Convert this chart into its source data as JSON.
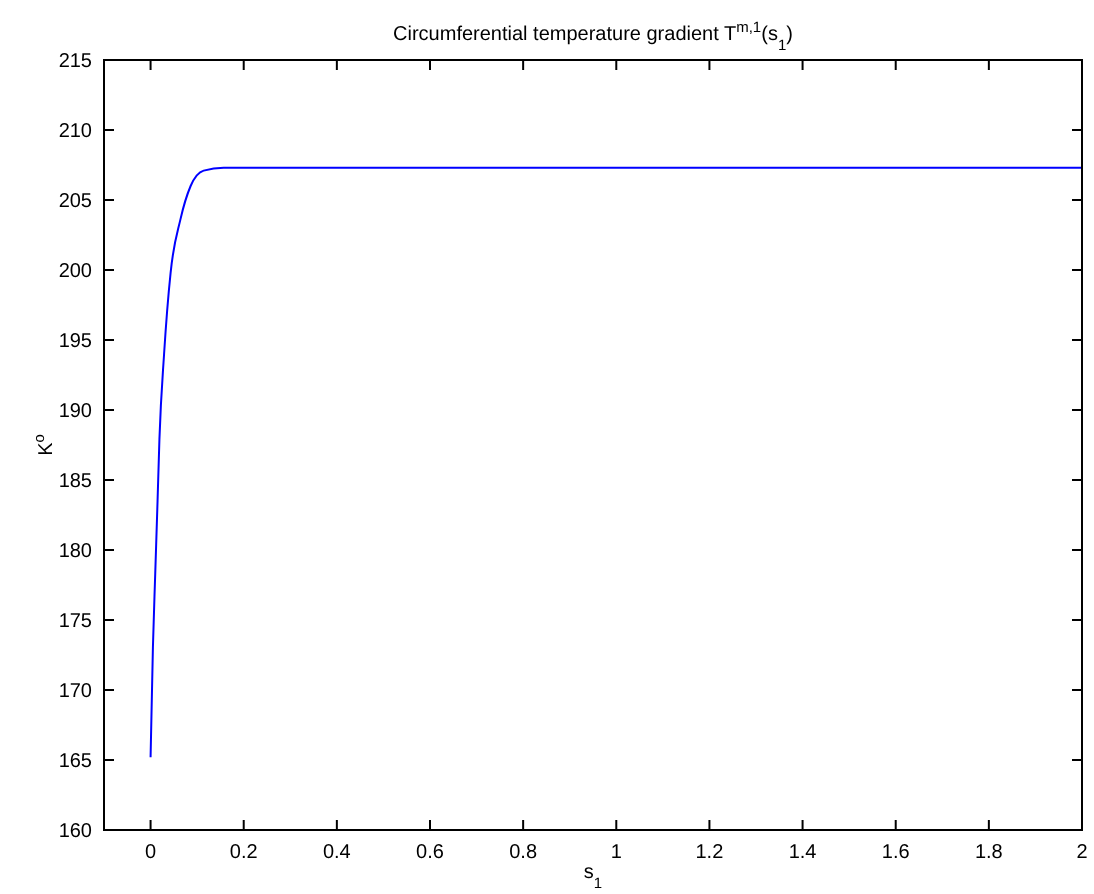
{
  "chart_data": {
    "type": "line",
    "title": "Circumferential temperature gradient T$^{m,1}$(s$_{1}$)",
    "xlabel": "s$_{1}$",
    "ylabel": "K$^{o}$",
    "xlim": [
      -0.1,
      2
    ],
    "xticks": [
      0,
      0.2,
      0.4,
      0.6,
      0.8,
      1,
      1.2,
      1.4,
      1.6,
      1.8,
      2
    ],
    "ylim": [
      160,
      215
    ],
    "yticks": [
      160,
      165,
      170,
      175,
      180,
      185,
      190,
      195,
      200,
      205,
      210,
      215
    ],
    "grid": false,
    "marker": "none",
    "line_style": "solid",
    "series": [
      {
        "color": "#0000ff",
        "x": [
          0,
          0.005,
          0.01,
          0.015,
          0.019,
          0.029,
          0.043,
          0.064,
          0.086,
          0.114,
          0.157,
          0.25,
          0.5,
          1,
          1.5,
          2
        ],
        "values": [
          165.2,
          173,
          178.3,
          183.5,
          187.9,
          194,
          199.8,
          203.6,
          206,
          207.1,
          207.3,
          207.3,
          207.3,
          207.3,
          207.3,
          207.3
        ]
      }
    ]
  }
}
